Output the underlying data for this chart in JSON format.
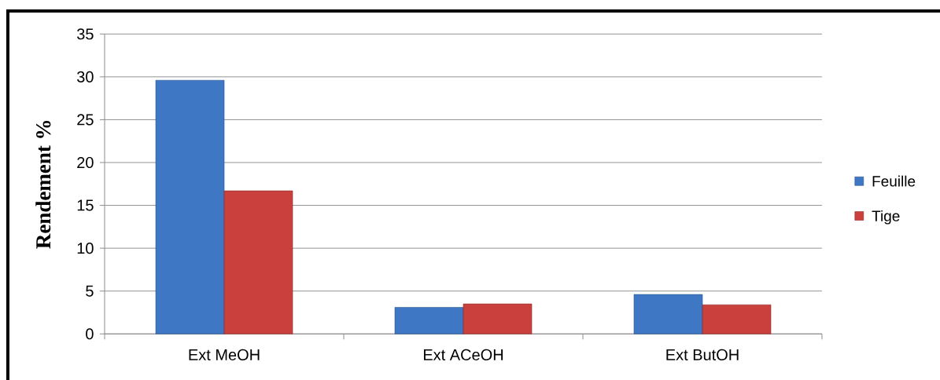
{
  "chart_data": {
    "type": "bar",
    "ylabel": "Rendement %",
    "categories": [
      "Ext MeOH",
      "Ext ACeOH",
      "Ext ButOH"
    ],
    "series": [
      {
        "name": "Feuille",
        "color": "#3e78c4",
        "values": [
          29.6,
          3.1,
          4.6
        ]
      },
      {
        "name": "Tige",
        "color": "#c9403d",
        "values": [
          16.7,
          3.5,
          3.4
        ]
      }
    ],
    "ylim": [
      0,
      35
    ],
    "yticks": [
      0,
      5,
      10,
      15,
      20,
      25,
      30,
      35
    ],
    "grid": "y",
    "legend": "right"
  }
}
